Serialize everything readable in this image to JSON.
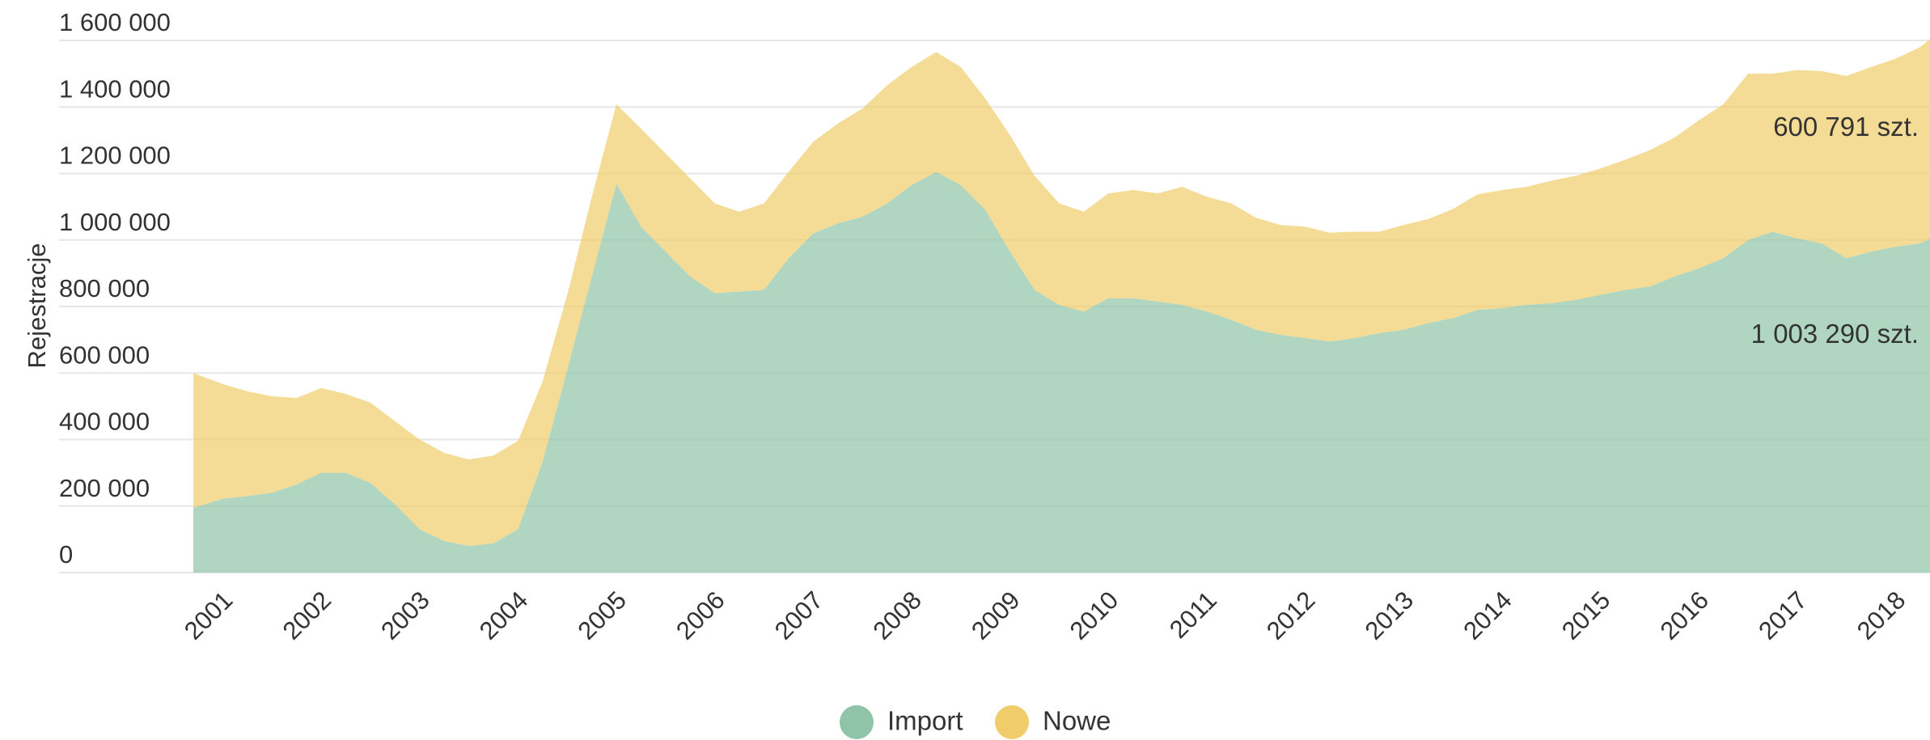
{
  "chart_data": {
    "type": "stacked_area",
    "y_label": "Rejestracje",
    "x": [
      2000.7,
      2001,
      2001.25,
      2001.5,
      2001.75,
      2002,
      2002.25,
      2002.5,
      2002.75,
      2003,
      2003.25,
      2003.5,
      2003.75,
      2004,
      2004.25,
      2004.5,
      2004.75,
      2005,
      2005.25,
      2005.5,
      2005.75,
      2006,
      2006.25,
      2006.5,
      2006.75,
      2007,
      2007.25,
      2007.5,
      2007.75,
      2008,
      2008.25,
      2008.5,
      2008.75,
      2009,
      2009.25,
      2009.5,
      2009.75,
      2010,
      2010.25,
      2010.5,
      2010.75,
      2011,
      2011.25,
      2011.5,
      2011.75,
      2012,
      2012.25,
      2012.5,
      2012.75,
      2013,
      2013.25,
      2013.5,
      2013.75,
      2014,
      2014.25,
      2014.5,
      2014.75,
      2015,
      2015.25,
      2015.5,
      2015.75,
      2016,
      2016.25,
      2016.5,
      2016.75,
      2017,
      2017.25,
      2017.5,
      2017.75,
      2018,
      2018.25,
      2018.35
    ],
    "series": [
      {
        "name": "Import",
        "color": "#8fc4a8",
        "values": [
          195000,
          222000,
          230000,
          240000,
          265000,
          300000,
          300000,
          270000,
          205000,
          130000,
          95000,
          80000,
          88000,
          130000,
          333000,
          610000,
          890000,
          1170000,
          1040000,
          965000,
          890000,
          840000,
          845000,
          850000,
          945000,
          1020000,
          1050000,
          1070000,
          1110000,
          1165000,
          1205000,
          1165000,
          1090000,
          965000,
          850000,
          805000,
          785000,
          825000,
          825000,
          815000,
          805000,
          785000,
          760000,
          730000,
          715000,
          705000,
          695000,
          705000,
          720000,
          730000,
          750000,
          765000,
          790000,
          795000,
          805000,
          810000,
          820000,
          835000,
          850000,
          860000,
          890000,
          915000,
          945000,
          1000000,
          1025000,
          1005000,
          990000,
          945000,
          965000,
          980000,
          990000,
          1003290
        ],
        "value_labels": [
          null,
          null,
          null,
          null,
          null,
          null,
          null,
          null,
          null,
          null,
          null,
          null,
          null,
          null,
          null,
          null,
          null,
          null,
          null,
          null,
          null,
          null,
          null,
          null,
          null,
          null,
          null,
          null,
          null,
          null,
          null,
          null,
          null,
          null,
          null,
          null,
          null,
          null,
          null,
          null,
          null,
          null,
          null,
          null,
          null,
          null,
          null,
          null,
          null,
          null,
          null,
          null,
          null,
          null,
          null,
          null,
          null,
          null,
          null,
          null,
          null,
          null,
          null,
          null,
          null,
          null,
          null,
          null,
          null,
          null,
          null,
          "1 003 290 szt."
        ]
      },
      {
        "name": "Nowe",
        "color": "#f0cd6a",
        "values": [
          405000,
          345000,
          315000,
          290000,
          260000,
          255000,
          237000,
          241000,
          250000,
          270000,
          265000,
          260000,
          264000,
          266000,
          242000,
          225000,
          240000,
          238000,
          295000,
          295000,
          295000,
          270000,
          240000,
          260000,
          260000,
          275000,
          300000,
          325000,
          355000,
          355000,
          360000,
          355000,
          335000,
          350000,
          343000,
          305000,
          300000,
          315000,
          325000,
          325000,
          355000,
          345000,
          350000,
          337000,
          330000,
          335000,
          327000,
          320000,
          305000,
          315000,
          313000,
          328000,
          347000,
          355000,
          355000,
          368000,
          373000,
          380000,
          391000,
          410000,
          417000,
          445000,
          463000,
          500000,
          475000,
          506000,
          518000,
          548000,
          555000,
          565000,
          590000,
          600791
        ],
        "value_labels": [
          null,
          null,
          null,
          null,
          null,
          null,
          null,
          null,
          null,
          null,
          null,
          null,
          null,
          null,
          null,
          null,
          null,
          null,
          null,
          null,
          null,
          null,
          null,
          null,
          null,
          null,
          null,
          null,
          null,
          null,
          null,
          null,
          null,
          null,
          null,
          null,
          null,
          null,
          null,
          null,
          null,
          null,
          null,
          null,
          null,
          null,
          null,
          null,
          null,
          null,
          null,
          null,
          null,
          null,
          null,
          null,
          null,
          null,
          null,
          null,
          null,
          null,
          null,
          null,
          null,
          null,
          null,
          null,
          null,
          null,
          null,
          "600 791 szt."
        ]
      }
    ],
    "xlim": [
      2000.7,
      2018.35
    ],
    "xticks": [
      2001,
      2002,
      2003,
      2004,
      2005,
      2006,
      2007,
      2008,
      2009,
      2010,
      2011,
      2012,
      2013,
      2014,
      2015,
      2016,
      2017,
      2018
    ],
    "ylim": [
      0,
      1600000
    ],
    "yticks": [
      0,
      {
        "value": 200000,
        "label": "200 000"
      },
      {
        "value": 400000,
        "label": "400 000"
      },
      {
        "value": 600000,
        "label": "600 000"
      },
      {
        "value": 800000,
        "label": "800 000"
      },
      {
        "value": 1000000,
        "label": "1 000 000"
      },
      {
        "value": 1200000,
        "label": "1 200 000"
      },
      {
        "value": 1400000,
        "label": "1 400 000"
      },
      {
        "value": 1600000,
        "label": "1 600 000"
      }
    ],
    "grid": true,
    "legend": "bottom"
  }
}
